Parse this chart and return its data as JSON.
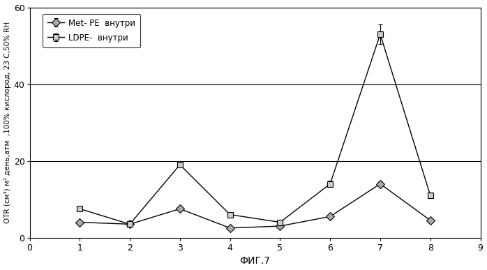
{
  "x": [
    1,
    2,
    3,
    4,
    5,
    6,
    7,
    8
  ],
  "met_pe": [
    4.0,
    3.5,
    7.5,
    2.5,
    3.0,
    5.5,
    14.0,
    4.5
  ],
  "met_pe_err": [
    0.3,
    0.2,
    0.5,
    0.3,
    0.3,
    0.4,
    0.7,
    0.4
  ],
  "ldpe": [
    7.5,
    3.5,
    19.0,
    6.0,
    4.0,
    14.0,
    53.0,
    11.0
  ],
  "ldpe_err": [
    0.4,
    0.3,
    0.7,
    0.5,
    0.4,
    0.8,
    2.5,
    0.8
  ],
  "xlabel": "ФИГ.7",
  "ylabel": "OTR (см³) м² день,атм  ,100% кислород, 23 C,50% RH",
  "xlim": [
    0,
    9
  ],
  "ylim": [
    0,
    60
  ],
  "yticks": [
    0,
    20,
    40,
    60
  ],
  "xticks": [
    0,
    1,
    2,
    3,
    4,
    5,
    6,
    7,
    8,
    9
  ],
  "legend_met_pe": "Met- PE  внутри",
  "legend_ldpe": "LDPE-  внутри",
  "line_color": "#000000",
  "figsize": [
    6.98,
    3.87
  ],
  "dpi": 100
}
